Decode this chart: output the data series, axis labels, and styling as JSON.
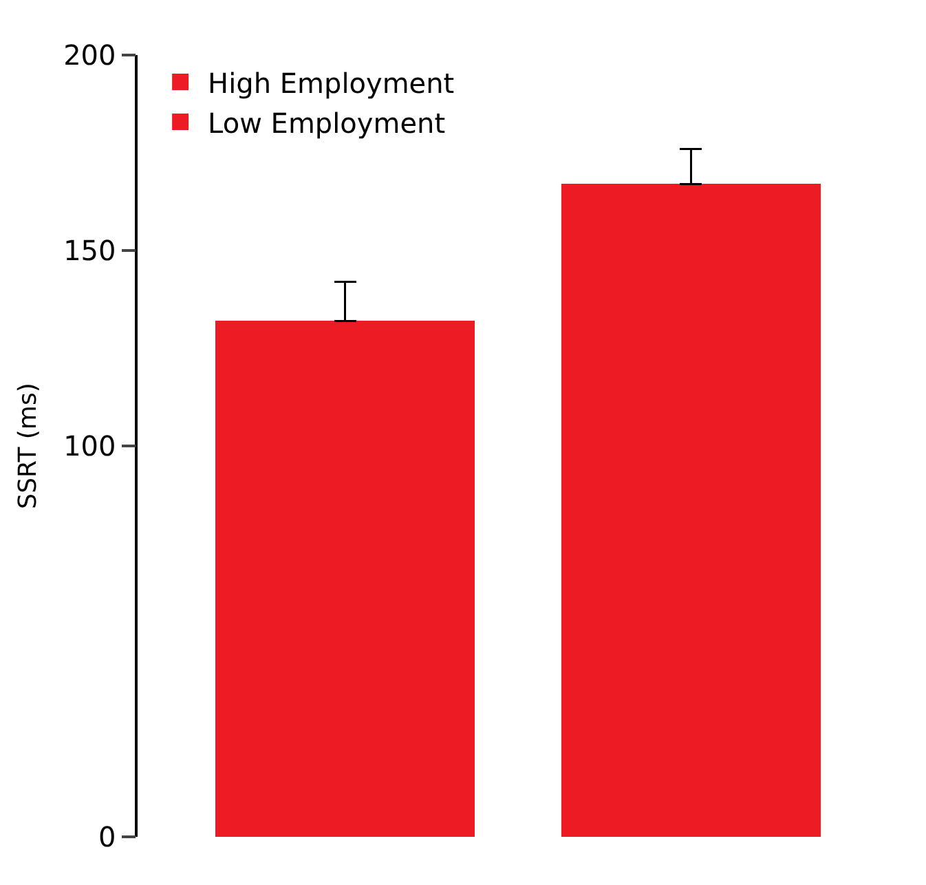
{
  "chart_data": {
    "type": "bar",
    "ylabel": "SSRT (ms)",
    "categories": [
      null,
      null
    ],
    "stacked": true,
    "series": [
      {
        "name": "High Employment",
        "color": "#ed1c24",
        "values": [
          132,
          null
        ],
        "errors": [
          [
            132,
            142
          ],
          null
        ]
      },
      {
        "name": "Low Employment",
        "color": "#ed1c24",
        "values": [
          null,
          167
        ],
        "errors": [
          null,
          [
            167,
            176
          ]
        ]
      }
    ],
    "ylim": [
      0,
      200
    ],
    "yticks": [
      0,
      100,
      150,
      200
    ],
    "legend": "top left"
  }
}
